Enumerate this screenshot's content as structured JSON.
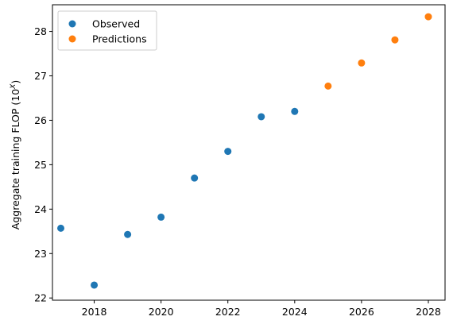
{
  "chart_data": {
    "type": "scatter",
    "xlim": [
      2016.75,
      2028.5
    ],
    "ylim": [
      21.95,
      28.6
    ],
    "xticks": [
      2018,
      2020,
      2022,
      2024,
      2026,
      2028
    ],
    "yticks": [
      22,
      23,
      24,
      25,
      26,
      27,
      28
    ],
    "ylabel_main": "Aggregate training FLOP (10",
    "ylabel_sup": "X",
    "ylabel_end": ")",
    "legend_placement": "top-left",
    "grid": false,
    "series": [
      {
        "name": "Observed",
        "color": "#1f77b4",
        "x": [
          2017,
          2018,
          2019,
          2020,
          2021,
          2022,
          2023,
          2024
        ],
        "y": [
          23.57,
          22.29,
          23.43,
          23.82,
          24.7,
          25.3,
          26.08,
          26.2
        ]
      },
      {
        "name": "Predictions",
        "color": "#ff7f0e",
        "x": [
          2025,
          2026,
          2027,
          2028
        ],
        "y": [
          26.77,
          27.29,
          27.81,
          28.33
        ]
      }
    ]
  }
}
